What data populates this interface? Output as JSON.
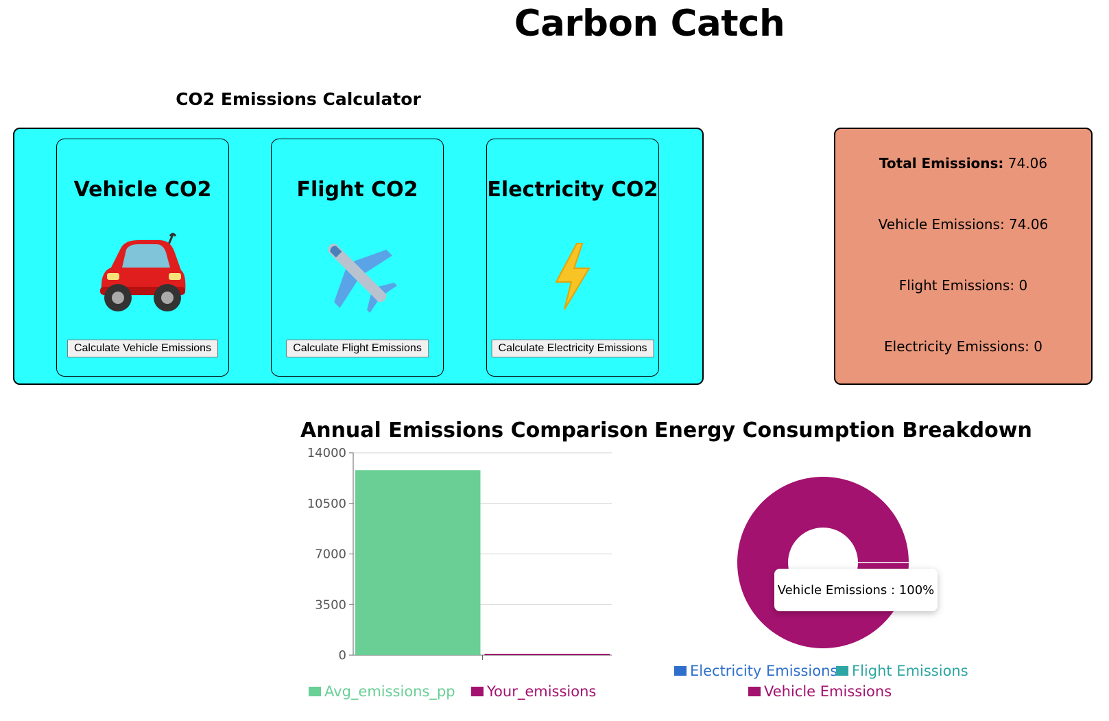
{
  "app": {
    "title": "Carbon Catch"
  },
  "calculator": {
    "heading": "CO2 Emissions Calculator",
    "cards": [
      {
        "title": "Vehicle CO2",
        "icon": "car-icon",
        "button": "Calculate Vehicle Emissions"
      },
      {
        "title": "Flight CO2",
        "icon": "airplane-icon",
        "button": "Calculate Flight Emissions"
      },
      {
        "title": "Electricity CO2",
        "icon": "lightning-icon",
        "button": "Calculate Electricity Emissions"
      }
    ]
  },
  "totals": {
    "total_label": "Total Emissions:",
    "total_value": "74.06",
    "vehicle": "Vehicle Emissions: 74.06",
    "flight": "Flight Emissions: 0",
    "electricity": "Electricity Emissions: 0"
  },
  "colors": {
    "panel": "#2bffff",
    "totals_panel": "#e9967a",
    "avg_bar": "#69cf95",
    "yours_bar": "#a3126f",
    "electricity": "#2e6fcb",
    "flight": "#2ea6a3",
    "vehicle": "#a3126f"
  },
  "chart_data": [
    {
      "type": "bar",
      "title": "Annual Emissions Comparison",
      "yticks": [
        0,
        3500,
        7000,
        10500,
        14000
      ],
      "ylim": [
        0,
        14000
      ],
      "grid": true,
      "legend_position": "bottom",
      "series": [
        {
          "name": "Avg_emissions_pp",
          "value": 12800
        },
        {
          "name": "Your_emissions",
          "value": 74.06
        }
      ]
    },
    {
      "type": "pie",
      "title": "Energy Consumption Breakdown",
      "legend_position": "bottom",
      "slices": [
        {
          "name": "Electricity Emissions",
          "value": 0
        },
        {
          "name": "Flight Emissions",
          "value": 0
        },
        {
          "name": "Vehicle Emissions",
          "value": 74.06
        }
      ],
      "tooltip": "Vehicle Emissions : 100%"
    }
  ]
}
